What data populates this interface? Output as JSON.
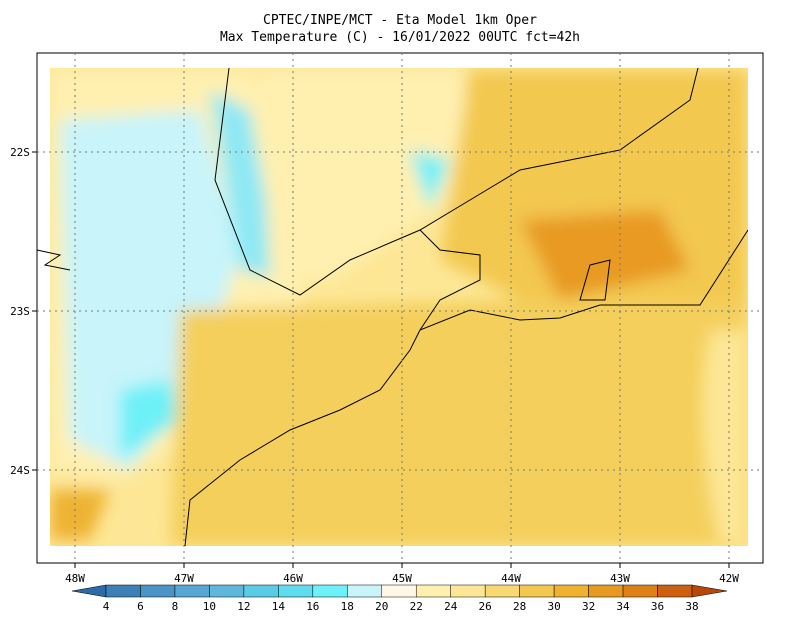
{
  "header": {
    "title": "CPTEC/INPE/MCT -  Eta Model 1km Oper",
    "subtitle": "Max Temperature (C) - 16/01/2022 00UTC fct=42h"
  },
  "map": {
    "lon_labels": [
      "48W",
      "47W",
      "46W",
      "45W",
      "44W",
      "43W",
      "42W"
    ],
    "lat_labels": [
      "22S",
      "23S",
      "24S"
    ]
  },
  "colorbar": {
    "labels": [
      4,
      6,
      8,
      10,
      12,
      14,
      16,
      18,
      20,
      22,
      24,
      26,
      28,
      30,
      32,
      34,
      36,
      38
    ],
    "colors": [
      "#2c6aa8",
      "#3c80b8",
      "#4a94c6",
      "#58a6d2",
      "#5fb8dc",
      "#5ccce6",
      "#5fdcee",
      "#6ef0f8",
      "#c8f4fa",
      "#fff8e8",
      "#fff0b0",
      "#fde796",
      "#f8d870",
      "#f3c850",
      "#eeb230",
      "#e89a20",
      "#de8018",
      "#cc6010",
      "#b84808"
    ]
  }
}
